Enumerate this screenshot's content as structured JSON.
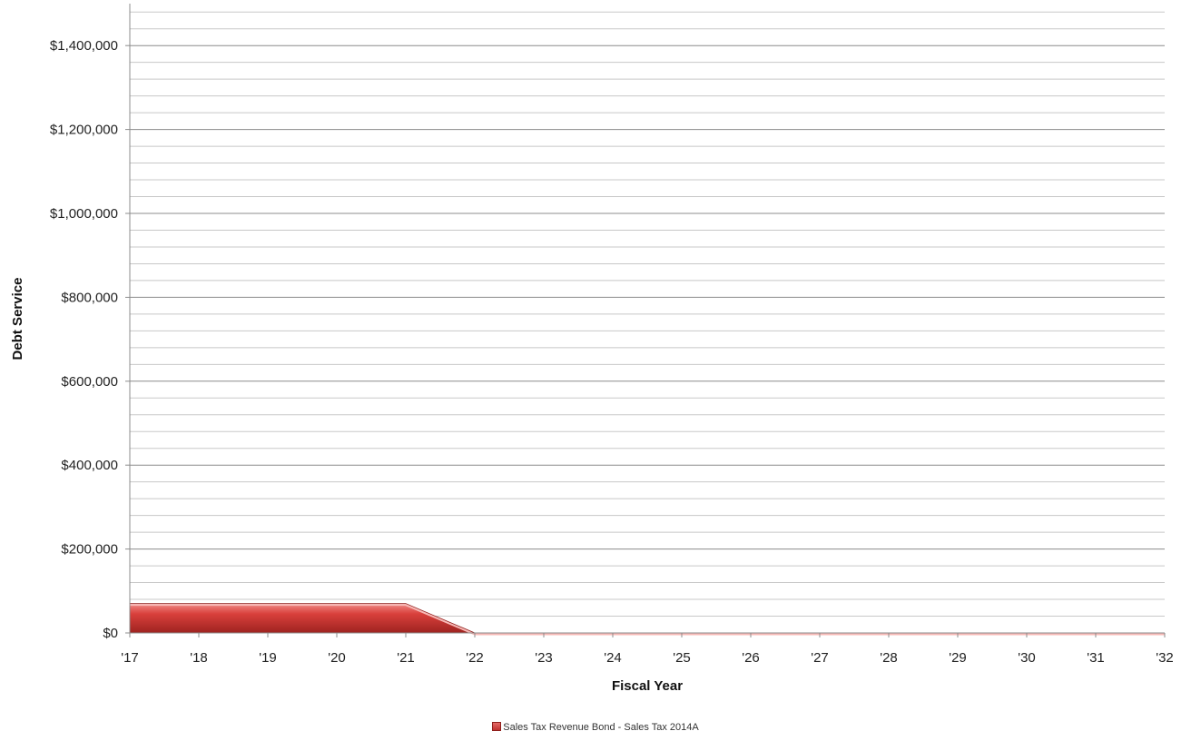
{
  "chart_data": {
    "type": "area",
    "x_tick_labels": [
      "'17",
      "'18",
      "'19",
      "'20",
      "'21",
      "'22",
      "'23",
      "'24",
      "'25",
      "'26",
      "'27",
      "'28",
      "'29",
      "'30",
      "'31",
      "'32"
    ],
    "y_tick_labels": [
      "$0",
      "$200,000",
      "$400,000",
      "$600,000",
      "$800,000",
      "$1,000,000",
      "$1,200,000",
      "$1,400,000"
    ],
    "xlabel": "Fiscal Year",
    "ylabel": "Debt Service",
    "ylim": [
      0,
      1500000
    ],
    "y_major_step": 200000,
    "y_minor_step": 40000,
    "grid": true,
    "legend_position": "bottom-center",
    "series": [
      {
        "name": "Sales Tax Revenue Bond -  Sales Tax 2014A",
        "color": "#c0312f",
        "values": [
          70000,
          70000,
          70000,
          70000,
          70000,
          0,
          0,
          0,
          0,
          0,
          0,
          0,
          0,
          0,
          0,
          0
        ]
      }
    ]
  }
}
